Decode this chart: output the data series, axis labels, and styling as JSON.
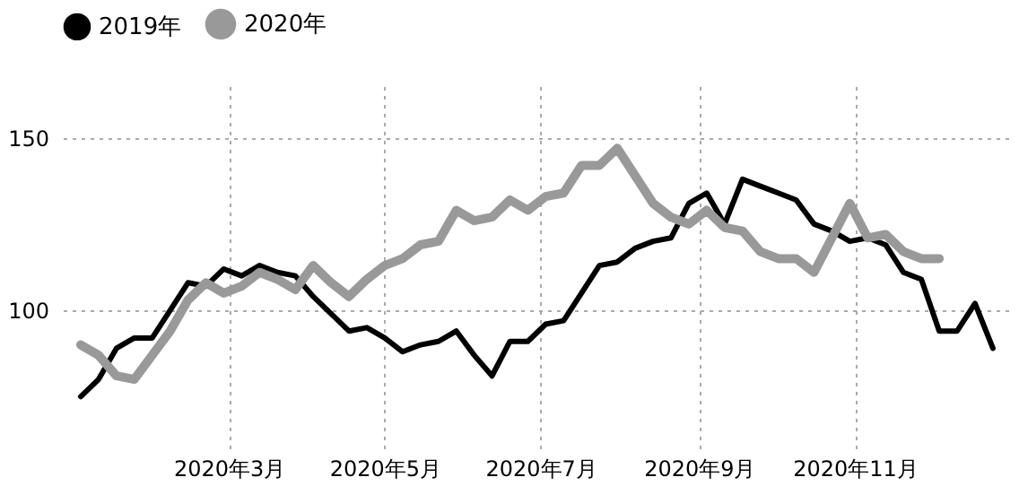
{
  "chart_data": {
    "type": "line",
    "x": [
      "2020-01-03",
      "2020-01-10",
      "2020-01-17",
      "2020-01-24",
      "2020-01-31",
      "2020-02-07",
      "2020-02-14",
      "2020-02-21",
      "2020-02-28",
      "2020-03-06",
      "2020-03-13",
      "2020-03-20",
      "2020-03-27",
      "2020-04-03",
      "2020-04-10",
      "2020-04-17",
      "2020-04-24",
      "2020-05-01",
      "2020-05-08",
      "2020-05-15",
      "2020-05-22",
      "2020-05-29",
      "2020-06-05",
      "2020-06-12",
      "2020-06-19",
      "2020-06-26",
      "2020-07-03",
      "2020-07-10",
      "2020-07-17",
      "2020-07-24",
      "2020-07-31",
      "2020-08-07",
      "2020-08-14",
      "2020-08-21",
      "2020-08-28",
      "2020-09-04",
      "2020-09-11",
      "2020-09-18",
      "2020-09-25",
      "2020-10-02",
      "2020-10-09",
      "2020-10-16",
      "2020-10-23",
      "2020-10-30",
      "2020-11-06",
      "2020-11-13",
      "2020-11-20",
      "2020-11-27",
      "2020-12-04",
      "2020-12-11",
      "2020-12-18",
      "2020-12-25"
    ],
    "series": [
      {
        "name": "2019年",
        "color": "#000000",
        "values": [
          75,
          80,
          89,
          92,
          92,
          100,
          108,
          107,
          112,
          110,
          113,
          111,
          110,
          104,
          99,
          94,
          95,
          92,
          88,
          90,
          91,
          94,
          87,
          81,
          91,
          91,
          96,
          97,
          105,
          113,
          114,
          118,
          120,
          121,
          131,
          134,
          125,
          138,
          136,
          134,
          132,
          125,
          123,
          120,
          121,
          119,
          111,
          109,
          94,
          94,
          102,
          89
        ]
      },
      {
        "name": "2020年",
        "color": "#999999",
        "values": [
          90,
          87,
          81,
          80,
          87,
          94,
          103,
          108,
          105,
          107,
          111,
          109,
          106,
          113,
          108,
          104,
          109,
          113,
          115,
          119,
          120,
          129,
          126,
          127,
          132,
          129,
          133,
          134,
          142,
          142,
          147,
          139,
          131,
          127,
          125,
          129,
          124,
          123,
          117,
          115,
          115,
          111,
          121,
          131,
          121,
          122,
          117,
          115,
          115,
          null,
          null,
          null
        ]
      }
    ],
    "xlim": [
      "2019-12-27",
      "2020-12-31"
    ],
    "xticks": [
      {
        "value": "2020-03-01",
        "label": "2020年3月"
      },
      {
        "value": "2020-05-01",
        "label": "2020年5月"
      },
      {
        "value": "2020-07-01",
        "label": "2020年7月"
      },
      {
        "value": "2020-09-01",
        "label": "2020年9月"
      },
      {
        "value": "2020-11-01",
        "label": "2020年11月"
      }
    ],
    "ylim": [
      60,
      165
    ],
    "yticks": [
      100,
      150
    ],
    "grid": true,
    "legend": "top",
    "marker": "none",
    "line_style": "solid"
  }
}
